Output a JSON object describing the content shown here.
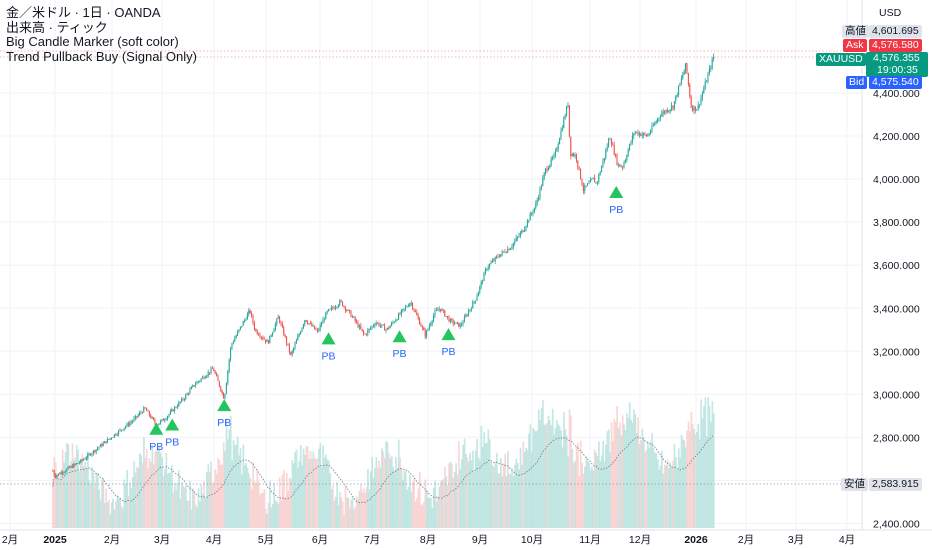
{
  "legend": {
    "line1": "金／米ドル · 1日 · OANDA",
    "line2": "出来高 · ティック",
    "line3": "Big Candle Marker (soft color)",
    "line4": "Trend Pullback Buy (Signal Only)"
  },
  "currency": "USD",
  "price_tags": {
    "high": {
      "label": "高値",
      "value": "4,601.695"
    },
    "ask": {
      "label": "Ask",
      "value": "4,576.580"
    },
    "last": {
      "label": "XAUUSD",
      "value": "4,576.355",
      "countdown": "19:00:35"
    },
    "bid": {
      "label": "Bid",
      "value": "4,575.540"
    },
    "low": {
      "label": "安値",
      "value": "2,583.915"
    }
  },
  "colors": {
    "up": "#26a69a",
    "down": "#ef5350",
    "up_soft": "#b2dfdb",
    "down_soft": "#f7c9c8",
    "signal": "#22c55e",
    "signal_text": "#2962ff",
    "ask_bg": "#f23645",
    "bid_bg": "#2962ff",
    "last_bg": "#089981",
    "tag_gray_bg": "#e0e3eb",
    "dotted": "#9598a1"
  },
  "chart_data": {
    "type": "candlestick",
    "y_axis": {
      "ticks": [
        2400000,
        2600000,
        2800000,
        3000000,
        3200000,
        3400000,
        3600000,
        3800000,
        4000000,
        4200000,
        4400000
      ],
      "tick_labels": [
        "2,400.000",
        "2,600.000",
        "2,800.000",
        "3,000.000",
        "3,200.000",
        "3,400.000",
        "3,600.000",
        "3,800.000",
        "4,000.000",
        "4,200.000",
        "4,400.000"
      ],
      "ylim": [
        2390,
        4625
      ]
    },
    "x_axis": {
      "labels": [
        "2月",
        "2025",
        "2月",
        "3月",
        "4月",
        "5月",
        "6月",
        "7月",
        "8月",
        "9月",
        "10月",
        "11月",
        "12月",
        "2026",
        "2月",
        "3月",
        "4月"
      ],
      "bold_labels": [
        "2025",
        "2026"
      ],
      "label_dates": [
        "2024-02",
        "2025-01",
        "2025-02",
        "2025-03",
        "2025-04",
        "2025-05",
        "2025-06",
        "2025-07",
        "2025-08",
        "2025-09",
        "2025-10",
        "2025-11",
        "2025-12",
        "2026-01",
        "2026-02",
        "2026-03",
        "2026-04"
      ]
    },
    "price_anchors": [
      {
        "date": "2024-12-15",
        "close": 2645
      },
      {
        "date": "2024-12-31",
        "close": 2620
      },
      {
        "date": "2025-01-15",
        "close": 2690
      },
      {
        "date": "2025-01-31",
        "close": 2800
      },
      {
        "date": "2025-02-14",
        "close": 2880
      },
      {
        "date": "2025-02-21",
        "close": 2935
      },
      {
        "date": "2025-02-28",
        "close": 2858
      },
      {
        "date": "2025-03-03",
        "close": 2890
      },
      {
        "date": "2025-03-14",
        "close": 2984
      },
      {
        "date": "2025-03-20",
        "close": 3045
      },
      {
        "date": "2025-03-31",
        "close": 3120
      },
      {
        "date": "2025-04-07",
        "close": 2980
      },
      {
        "date": "2025-04-11",
        "close": 3230
      },
      {
        "date": "2025-04-22",
        "close": 3390
      },
      {
        "date": "2025-04-25",
        "close": 3300
      },
      {
        "date": "2025-05-02",
        "close": 3240
      },
      {
        "date": "2025-05-08",
        "close": 3360
      },
      {
        "date": "2025-05-15",
        "close": 3180
      },
      {
        "date": "2025-05-23",
        "close": 3350
      },
      {
        "date": "2025-05-30",
        "close": 3290
      },
      {
        "date": "2025-06-05",
        "close": 3380
      },
      {
        "date": "2025-06-13",
        "close": 3430
      },
      {
        "date": "2025-06-20",
        "close": 3360
      },
      {
        "date": "2025-06-27",
        "close": 3275
      },
      {
        "date": "2025-07-03",
        "close": 3335
      },
      {
        "date": "2025-07-09",
        "close": 3300
      },
      {
        "date": "2025-07-14",
        "close": 3350
      },
      {
        "date": "2025-07-22",
        "close": 3430
      },
      {
        "date": "2025-07-30",
        "close": 3275
      },
      {
        "date": "2025-08-05",
        "close": 3380
      },
      {
        "date": "2025-08-08",
        "close": 3400
      },
      {
        "date": "2025-08-14",
        "close": 3340
      },
      {
        "date": "2025-08-20",
        "close": 3318
      },
      {
        "date": "2025-08-29",
        "close": 3445
      },
      {
        "date": "2025-09-05",
        "close": 3590
      },
      {
        "date": "2025-09-12",
        "close": 3645
      },
      {
        "date": "2025-09-19",
        "close": 3685
      },
      {
        "date": "2025-09-26",
        "close": 3760
      },
      {
        "date": "2025-10-03",
        "close": 3880
      },
      {
        "date": "2025-10-08",
        "close": 4040
      },
      {
        "date": "2025-10-13",
        "close": 4110
      },
      {
        "date": "2025-10-17",
        "close": 4250
      },
      {
        "date": "2025-10-20",
        "close": 4355
      },
      {
        "date": "2025-10-21",
        "close": 4120
      },
      {
        "date": "2025-10-24",
        "close": 4110
      },
      {
        "date": "2025-10-28",
        "close": 3950
      },
      {
        "date": "2025-11-03",
        "close": 4000
      },
      {
        "date": "2025-11-05",
        "close": 3980
      },
      {
        "date": "2025-11-10",
        "close": 4110
      },
      {
        "date": "2025-11-13",
        "close": 4200
      },
      {
        "date": "2025-11-18",
        "close": 4065
      },
      {
        "date": "2025-11-21",
        "close": 4060
      },
      {
        "date": "2025-11-28",
        "close": 4220
      },
      {
        "date": "2025-12-05",
        "close": 4200
      },
      {
        "date": "2025-12-12",
        "close": 4300
      },
      {
        "date": "2025-12-19",
        "close": 4340
      },
      {
        "date": "2025-12-26",
        "close": 4530
      },
      {
        "date": "2025-12-29",
        "close": 4330
      },
      {
        "date": "2026-01-02",
        "close": 4330
      },
      {
        "date": "2026-01-07",
        "close": 4450
      },
      {
        "date": "2026-01-09",
        "close": 4500
      },
      {
        "date": "2026-01-12",
        "close": 4576.355
      }
    ],
    "signals": [
      {
        "date": "2025-02-28",
        "price": 2840,
        "label": "PB"
      },
      {
        "date": "2025-03-07",
        "price": 2860,
        "label": "PB"
      },
      {
        "date": "2025-04-07",
        "price": 2950,
        "label": "PB"
      },
      {
        "date": "2025-06-06",
        "price": 3260,
        "label": "PB"
      },
      {
        "date": "2025-07-16",
        "price": 3270,
        "label": "PB"
      },
      {
        "date": "2025-08-13",
        "price": 3280,
        "label": "PB"
      },
      {
        "date": "2025-11-17",
        "price": 3940,
        "label": "PB"
      }
    ],
    "volume": {
      "type": "area",
      "note": "tick volume, soft-colored columns with moving average"
    }
  }
}
